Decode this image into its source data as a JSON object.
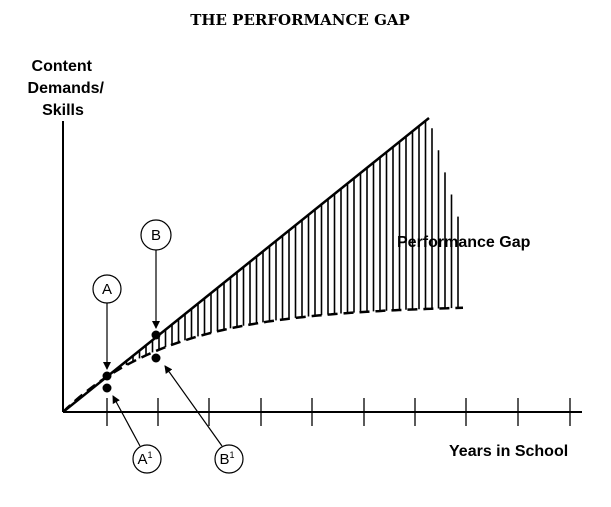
{
  "title": "THE PERFORMANCE GAP",
  "y_axis_label": [
    "Content",
    "Demands/",
    "Skills"
  ],
  "x_axis_label": "Years in School",
  "gap_label": "Performance Gap",
  "markers": {
    "a": "A",
    "b": "B",
    "a1": {
      "base": "A",
      "sup": "1"
    },
    "b1": {
      "base": "B",
      "sup": "1"
    }
  },
  "colors": {
    "ink": "#000000",
    "paper": "#ffffff"
  }
}
